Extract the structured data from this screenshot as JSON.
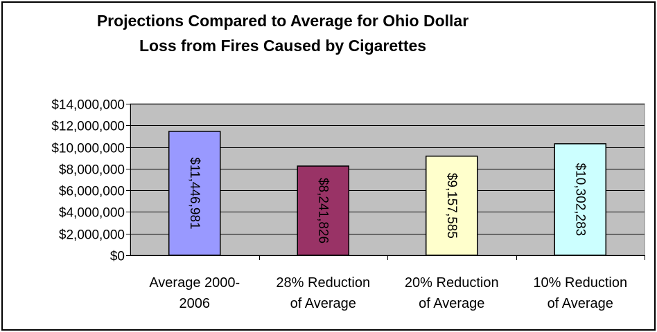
{
  "chart_data": {
    "type": "bar",
    "title_lines": [
      "Projections Compared to Average for Ohio Dollar",
      "Loss from Fires Caused by Cigarettes"
    ],
    "categories": [
      [
        "Average 2000-",
        "2006"
      ],
      [
        "28% Reduction",
        "of Average"
      ],
      [
        "20% Reduction",
        "of Average"
      ],
      [
        "10% Reduction",
        "of Average"
      ]
    ],
    "values": [
      11446981,
      8241826,
      9157585,
      10302283
    ],
    "data_labels": [
      "$11,446,981",
      "$8,241,826",
      "$9,157,585",
      "$10,302,283"
    ],
    "bar_colors": [
      "#9999ff",
      "#993366",
      "#ffffcc",
      "#ccffff"
    ],
    "plot_background": "#c0c0c0",
    "ylim": [
      0,
      14000000
    ],
    "ytick_labels": [
      "$0",
      "$2,000,000",
      "$4,000,000",
      "$6,000,000",
      "$8,000,000",
      "$10,000,000",
      "$12,000,000",
      "$14,000,000"
    ],
    "grid": true,
    "legend": "none"
  }
}
